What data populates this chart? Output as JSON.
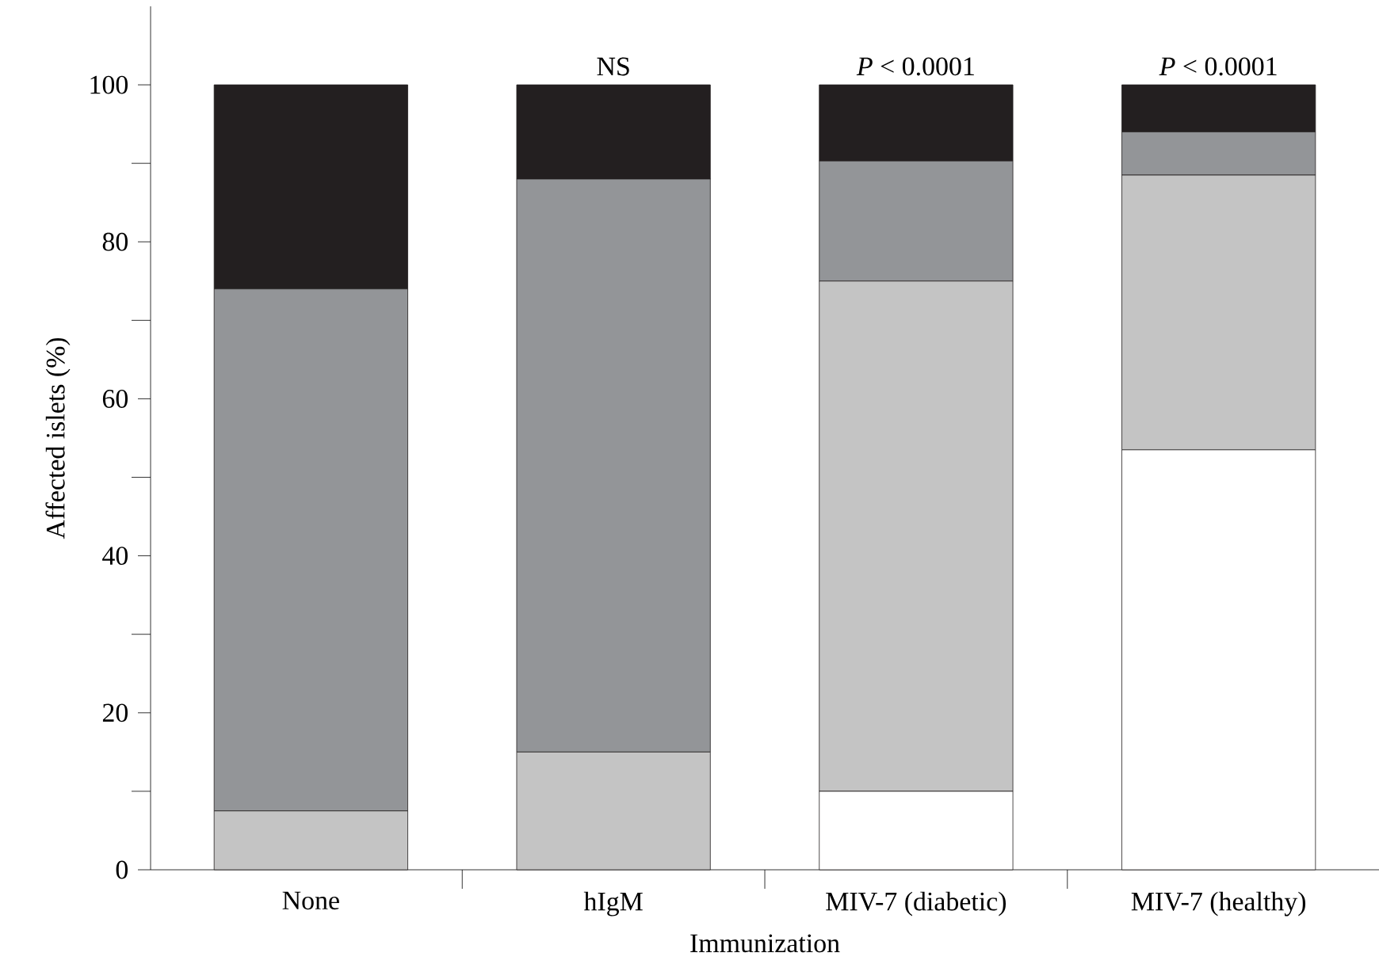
{
  "chart_data": {
    "type": "bar",
    "stacked": true,
    "xlabel": "Immunization",
    "ylabel": "Affected islets (%)",
    "categories": [
      "None",
      "hIgM",
      "MIV-7 (diabetic)",
      "MIV-7 (healthy)"
    ],
    "series": [
      {
        "color": "#ffffff",
        "values": [
          0,
          0,
          10,
          53.5
        ]
      },
      {
        "color": "#c4c4c4",
        "values": [
          7.5,
          15,
          65,
          35
        ]
      },
      {
        "color": "#939598",
        "values": [
          66.5,
          73,
          15.3,
          5.5
        ]
      },
      {
        "color": "#231f20",
        "values": [
          26,
          12,
          9.7,
          6
        ]
      }
    ],
    "ylim": [
      0,
      110
    ],
    "yticks": [
      0,
      {
        "value": 10,
        "label": null
      },
      20,
      {
        "value": 30,
        "label": null
      },
      40,
      {
        "value": 50,
        "label": null
      },
      60,
      {
        "value": 70,
        "label": null
      },
      80,
      {
        "value": 90,
        "label": null
      },
      100
    ],
    "annotations": [
      "NS",
      "*P* < 0.0001",
      "*P* < 0.0001"
    ]
  }
}
